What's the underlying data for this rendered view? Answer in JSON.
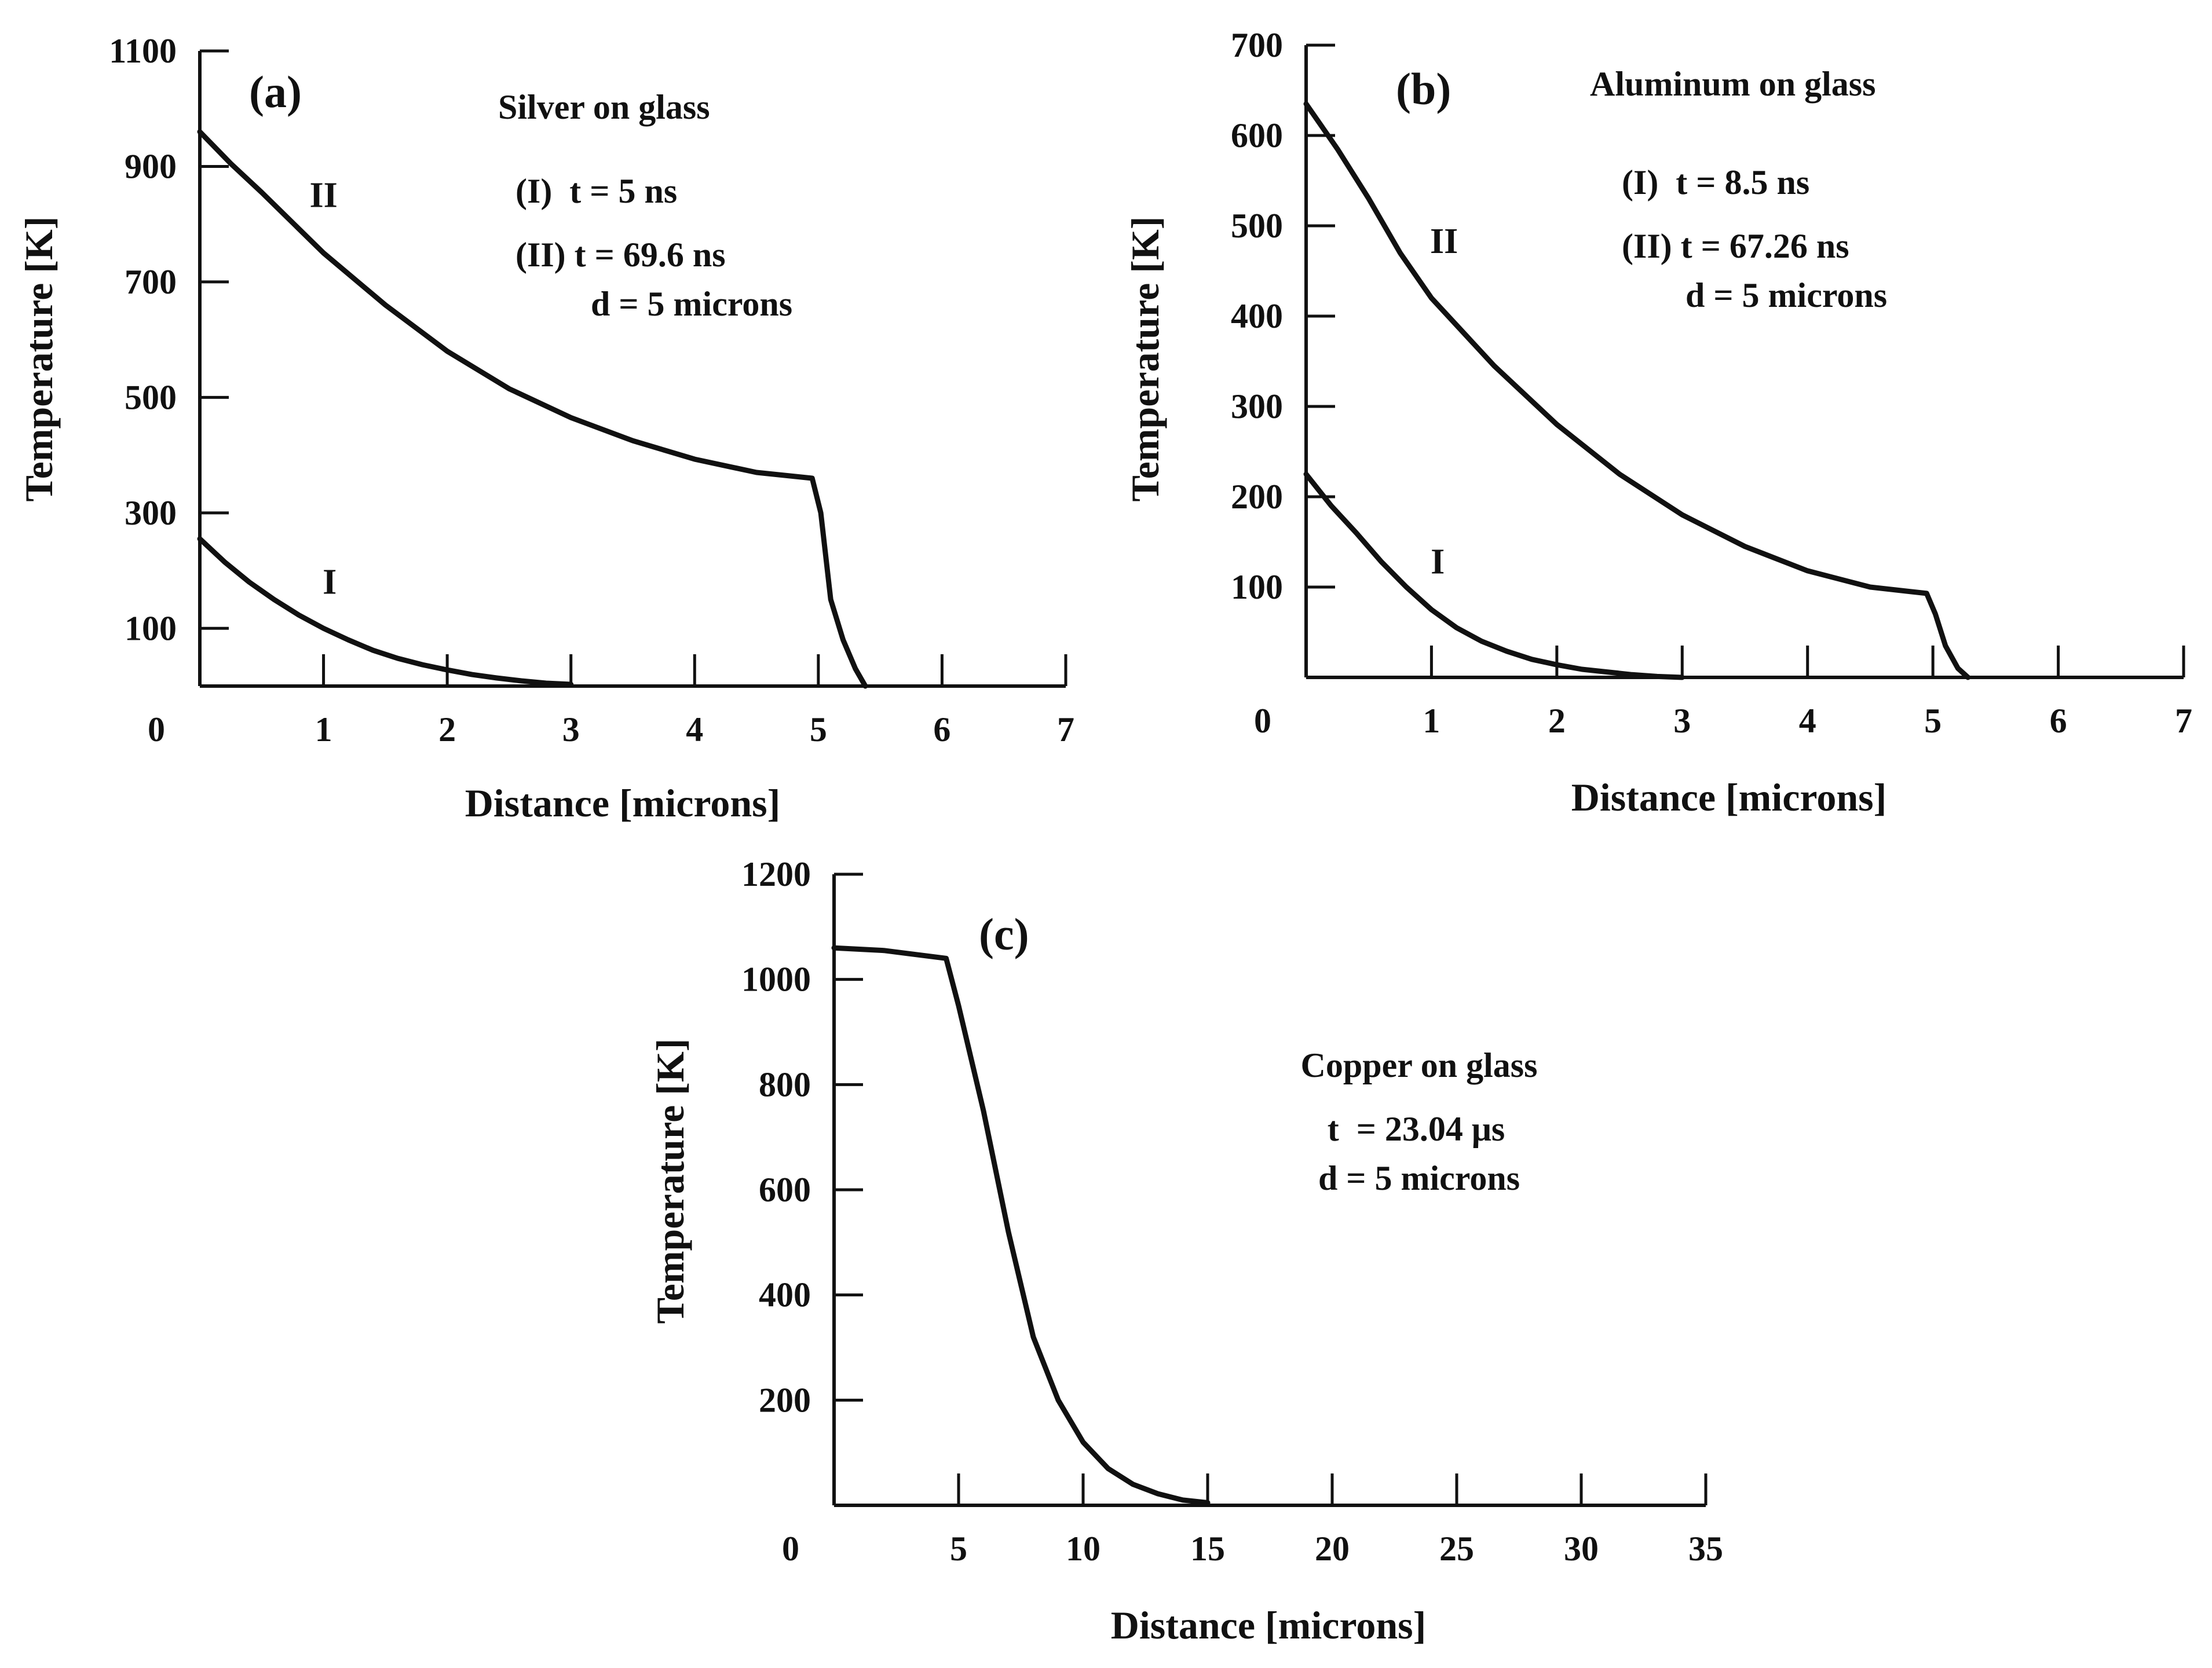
{
  "chart_data": [
    {
      "id": "a",
      "type": "line",
      "panel_label": "(a)",
      "title": "Silver on glass",
      "annotations": [
        "(I)  t = 5 ns",
        "(II) t = 69.6 ns",
        "d = 5 microns"
      ],
      "xlabel": "Distance [microns]",
      "ylabel": "Temperature [K]",
      "xlim": [
        0,
        7
      ],
      "ylim": [
        0,
        1100
      ],
      "xticks": [
        1,
        2,
        3,
        4,
        5,
        6,
        7
      ],
      "xtick_labels": [
        "1",
        "2",
        "3",
        "4",
        "5",
        "6",
        "7"
      ],
      "yticks": [
        100,
        300,
        500,
        700,
        900,
        1100
      ],
      "ytick_labels": [
        "100",
        "300",
        "500",
        "700",
        "900",
        "1100"
      ],
      "origin_label": "0",
      "series": [
        {
          "name": "I",
          "label": "I",
          "label_at": [
            1.05,
            160
          ],
          "x": [
            0,
            0.2,
            0.4,
            0.6,
            0.8,
            1.0,
            1.2,
            1.4,
            1.6,
            1.8,
            2.0,
            2.2,
            2.4,
            2.6,
            2.8,
            3.0
          ],
          "y": [
            255,
            215,
            180,
            150,
            123,
            100,
            80,
            62,
            48,
            37,
            28,
            20,
            14,
            9,
            5,
            3
          ]
        },
        {
          "name": "II",
          "label": "II",
          "label_at": [
            1.0,
            830
          ],
          "x": [
            0,
            0.25,
            0.5,
            1.0,
            1.5,
            2.0,
            2.5,
            3.0,
            3.5,
            4.0,
            4.5,
            4.95,
            5.02,
            5.1,
            5.2,
            5.3,
            5.38
          ],
          "y": [
            960,
            905,
            855,
            750,
            660,
            580,
            515,
            465,
            425,
            393,
            370,
            360,
            300,
            150,
            80,
            30,
            0
          ]
        }
      ]
    },
    {
      "id": "b",
      "type": "line",
      "panel_label": "(b)",
      "title": "Aluminum on glass",
      "annotations": [
        "(I)  t = 8.5 ns",
        "(II) t = 67.26 ns",
        "d = 5 microns"
      ],
      "xlabel": "Distance [microns]",
      "ylabel": "Temperature [K]",
      "xlim": [
        0,
        7
      ],
      "ylim": [
        0,
        700
      ],
      "xticks": [
        1,
        2,
        3,
        4,
        5,
        6,
        7
      ],
      "xtick_labels": [
        "1",
        "2",
        "3",
        "4",
        "5",
        "6",
        "7"
      ],
      "yticks": [
        100,
        200,
        300,
        400,
        500,
        600,
        700
      ],
      "ytick_labels": [
        "100",
        "200",
        "300",
        "400",
        "500",
        "600",
        "700"
      ],
      "origin_label": "0",
      "series": [
        {
          "name": "I",
          "label": "I",
          "label_at": [
            1.05,
            115
          ],
          "x": [
            0,
            0.2,
            0.4,
            0.6,
            0.8,
            1.0,
            1.2,
            1.4,
            1.6,
            1.8,
            2.0,
            2.2,
            2.4,
            2.6,
            2.8,
            3.0
          ],
          "y": [
            225,
            190,
            160,
            128,
            100,
            75,
            55,
            40,
            29,
            20,
            14,
            9,
            6,
            3,
            1,
            0
          ]
        },
        {
          "name": "II",
          "label": "II",
          "label_at": [
            1.1,
            470
          ],
          "x": [
            0,
            0.25,
            0.5,
            0.75,
            1.0,
            1.5,
            2.0,
            2.5,
            3.0,
            3.5,
            4.0,
            4.5,
            4.95,
            5.02,
            5.1,
            5.2,
            5.28
          ],
          "y": [
            635,
            585,
            530,
            470,
            420,
            345,
            280,
            225,
            180,
            145,
            118,
            100,
            93,
            70,
            35,
            10,
            0
          ]
        }
      ]
    },
    {
      "id": "c",
      "type": "line",
      "panel_label": "(c)",
      "title": "Copper on glass",
      "annotations": [
        "t  = 23.04 μs",
        "d = 5 microns"
      ],
      "xlabel": "Distance [microns]",
      "ylabel": "Temperature [K]",
      "xlim": [
        0,
        35
      ],
      "ylim": [
        0,
        1200
      ],
      "xticks": [
        5,
        10,
        15,
        20,
        25,
        30,
        35
      ],
      "xtick_labels": [
        "5",
        "10",
        "15",
        "20",
        "25",
        "30",
        "35"
      ],
      "yticks": [
        200,
        400,
        600,
        800,
        1000,
        1200
      ],
      "ytick_labels": [
        "200",
        "400",
        "600",
        "800",
        "1000",
        "1200"
      ],
      "origin_label": "0",
      "series": [
        {
          "name": "t = 23.04 μs",
          "x": [
            0,
            2,
            4.5,
            5,
            6,
            7,
            8,
            9,
            10,
            11,
            12,
            13,
            14,
            15
          ],
          "y": [
            1060,
            1055,
            1040,
            950,
            750,
            520,
            320,
            200,
            120,
            70,
            40,
            22,
            10,
            5
          ]
        }
      ]
    }
  ]
}
